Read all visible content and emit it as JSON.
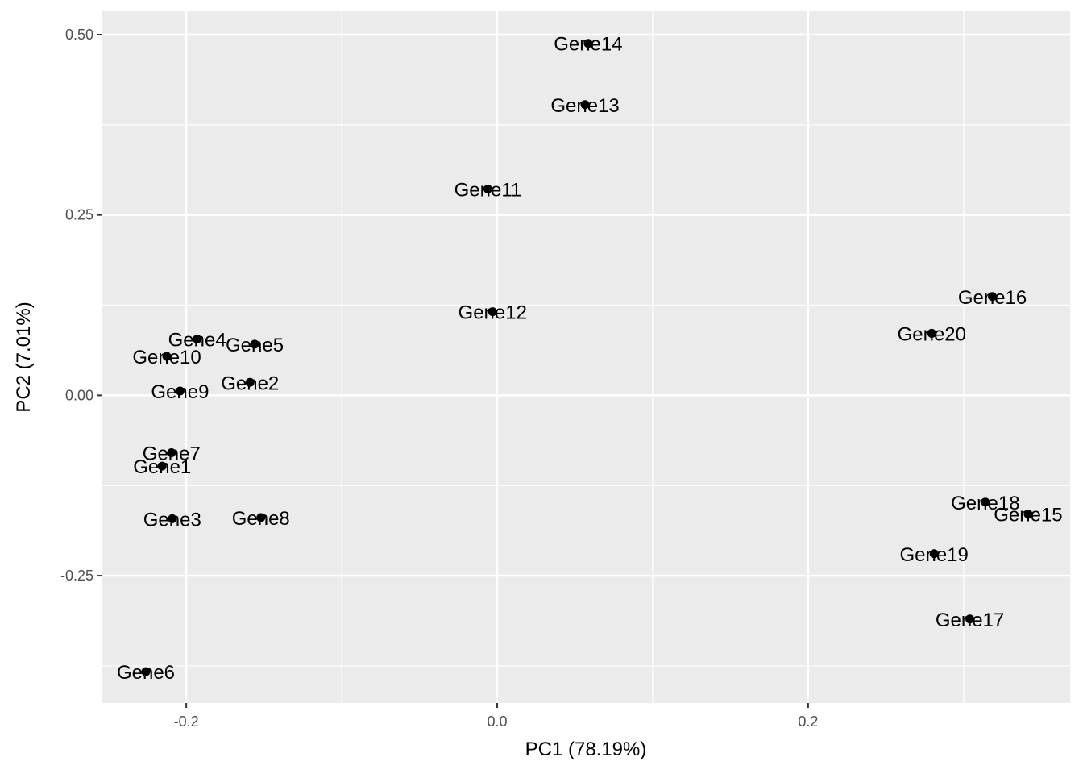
{
  "chart_data": {
    "type": "scatter",
    "title": "",
    "xlabel": "PC1 (78.19%)",
    "ylabel": "PC2 (7.01%)",
    "xlim": [
      -0.2545,
      0.3685
    ],
    "ylim": [
      -0.4265,
      0.5324
    ],
    "x_ticks": [
      -0.2,
      0.0,
      0.2
    ],
    "x_tick_labels": [
      "-0.2",
      "0.0",
      "0.2"
    ],
    "y_ticks": [
      -0.25,
      0.0,
      0.25,
      0.5
    ],
    "y_tick_labels": [
      "-0.25",
      "0.00",
      "0.25",
      "0.50"
    ],
    "grid": true,
    "legend": "none",
    "colors": {
      "panel_background": "#ebebeb",
      "grid_major": "#ffffff",
      "grid_minor": "#ffffff",
      "point": "#000000",
      "tick_label": "#4d4d4d",
      "tick_mark": "#333333"
    },
    "points": [
      {
        "label": "Gene1",
        "x": -0.2155,
        "y": -0.098
      },
      {
        "label": "Gene2",
        "x": -0.159,
        "y": 0.018
      },
      {
        "label": "Gene3",
        "x": -0.209,
        "y": -0.171
      },
      {
        "label": "Gene4",
        "x": -0.193,
        "y": 0.078
      },
      {
        "label": "Gene5",
        "x": -0.156,
        "y": 0.071
      },
      {
        "label": "Gene6",
        "x": -0.226,
        "y": -0.383
      },
      {
        "label": "Gene7",
        "x": -0.2095,
        "y": -0.0795
      },
      {
        "label": "Gene8",
        "x": -0.152,
        "y": -0.1695
      },
      {
        "label": "Gene9",
        "x": -0.204,
        "y": 0.006
      },
      {
        "label": "Gene10",
        "x": -0.2125,
        "y": 0.054
      },
      {
        "label": "Gene11",
        "x": -0.006,
        "y": 0.286
      },
      {
        "label": "Gene12",
        "x": -0.003,
        "y": 0.116
      },
      {
        "label": "Gene13",
        "x": 0.0565,
        "y": 0.403
      },
      {
        "label": "Gene14",
        "x": 0.0585,
        "y": 0.488
      },
      {
        "label": "Gene15",
        "x": 0.3415,
        "y": -0.1645
      },
      {
        "label": "Gene16",
        "x": 0.3185,
        "y": 0.137
      },
      {
        "label": "Gene17",
        "x": 0.304,
        "y": -0.31
      },
      {
        "label": "Gene18",
        "x": 0.314,
        "y": -0.148
      },
      {
        "label": "Gene19",
        "x": 0.281,
        "y": -0.2195
      },
      {
        "label": "Gene20",
        "x": 0.2795,
        "y": 0.086
      }
    ]
  }
}
